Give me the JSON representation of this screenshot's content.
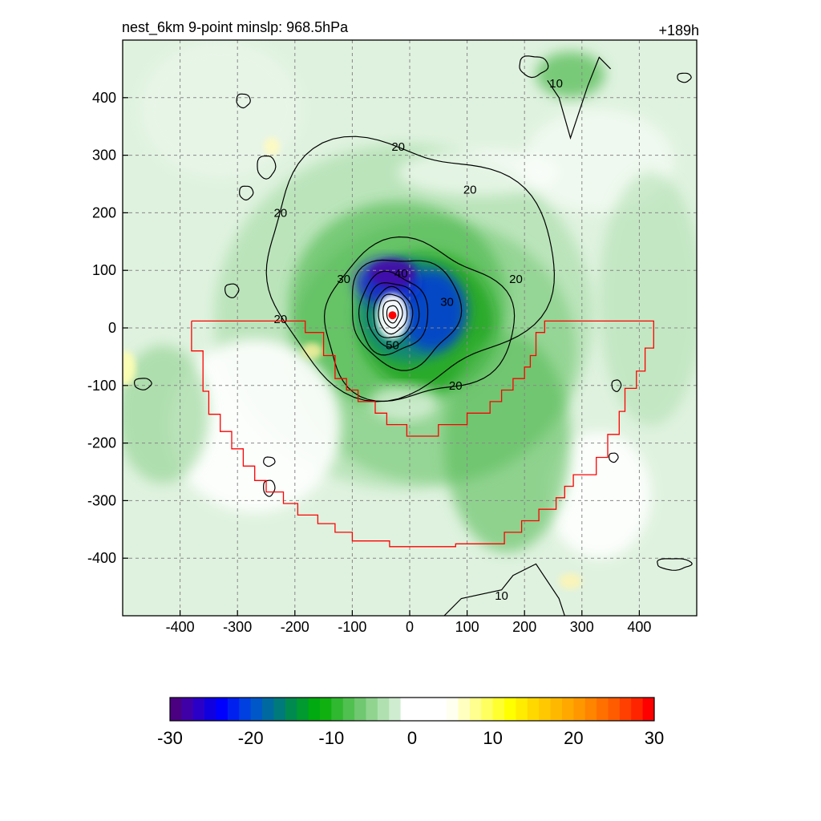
{
  "chart_data": {
    "type": "contour",
    "title": "nest_6km  9-point minslp: 968.5hPa",
    "time_label": "+189h",
    "xlim": [
      -500,
      500
    ],
    "ylim": [
      -500,
      500
    ],
    "x_ticks": [
      -400,
      -300,
      -200,
      -100,
      0,
      100,
      200,
      300,
      400
    ],
    "y_ticks": [
      -400,
      -300,
      -200,
      -100,
      0,
      100,
      200,
      300,
      400
    ],
    "grid": true,
    "center_marker": {
      "x": -30,
      "y": 22,
      "color": "#ff0000"
    },
    "colorbar": {
      "min": -30,
      "max": 30,
      "ticks": [
        -30,
        -20,
        -10,
        0,
        10,
        20,
        30
      ],
      "colors": [
        "#4b0082",
        "#3f00a8",
        "#2a00c8",
        "#1000e0",
        "#0000ff",
        "#0020f0",
        "#0040e0",
        "#0058c8",
        "#006aa0",
        "#007a7a",
        "#008a50",
        "#009a30",
        "#00aa10",
        "#10b010",
        "#30b830",
        "#50c050",
        "#70c870",
        "#90d490",
        "#b0e0b0",
        "#d0ecd0",
        "#ffffff",
        "#ffffff",
        "#ffffff",
        "#ffffff",
        "#fffff0",
        "#ffffc0",
        "#ffff90",
        "#ffff60",
        "#ffff30",
        "#ffff00",
        "#ffec00",
        "#ffd800",
        "#ffc800",
        "#ffb800",
        "#ffa800",
        "#ff9800",
        "#ff8400",
        "#ff7000",
        "#ff5c00",
        "#ff4000",
        "#ff2400",
        "#ff0000"
      ]
    },
    "contour_labels": [
      {
        "text": "40",
        "x": -15,
        "y": 95
      },
      {
        "text": "30",
        "x": -115,
        "y": 85
      },
      {
        "text": "30",
        "x": 65,
        "y": 45
      },
      {
        "text": "20",
        "x": -225,
        "y": 200
      },
      {
        "text": "20",
        "x": -20,
        "y": 315
      },
      {
        "text": "20",
        "x": 105,
        "y": 240
      },
      {
        "text": "20",
        "x": 185,
        "y": 85
      },
      {
        "text": "20",
        "x": -225,
        "y": 15
      },
      {
        "text": "20",
        "x": 80,
        "y": -100
      },
      {
        "text": "10",
        "x": 255,
        "y": 425
      },
      {
        "text": "10",
        "x": 160,
        "y": -465
      },
      {
        "text": "50",
        "x": -30,
        "y": -30
      }
    ]
  }
}
